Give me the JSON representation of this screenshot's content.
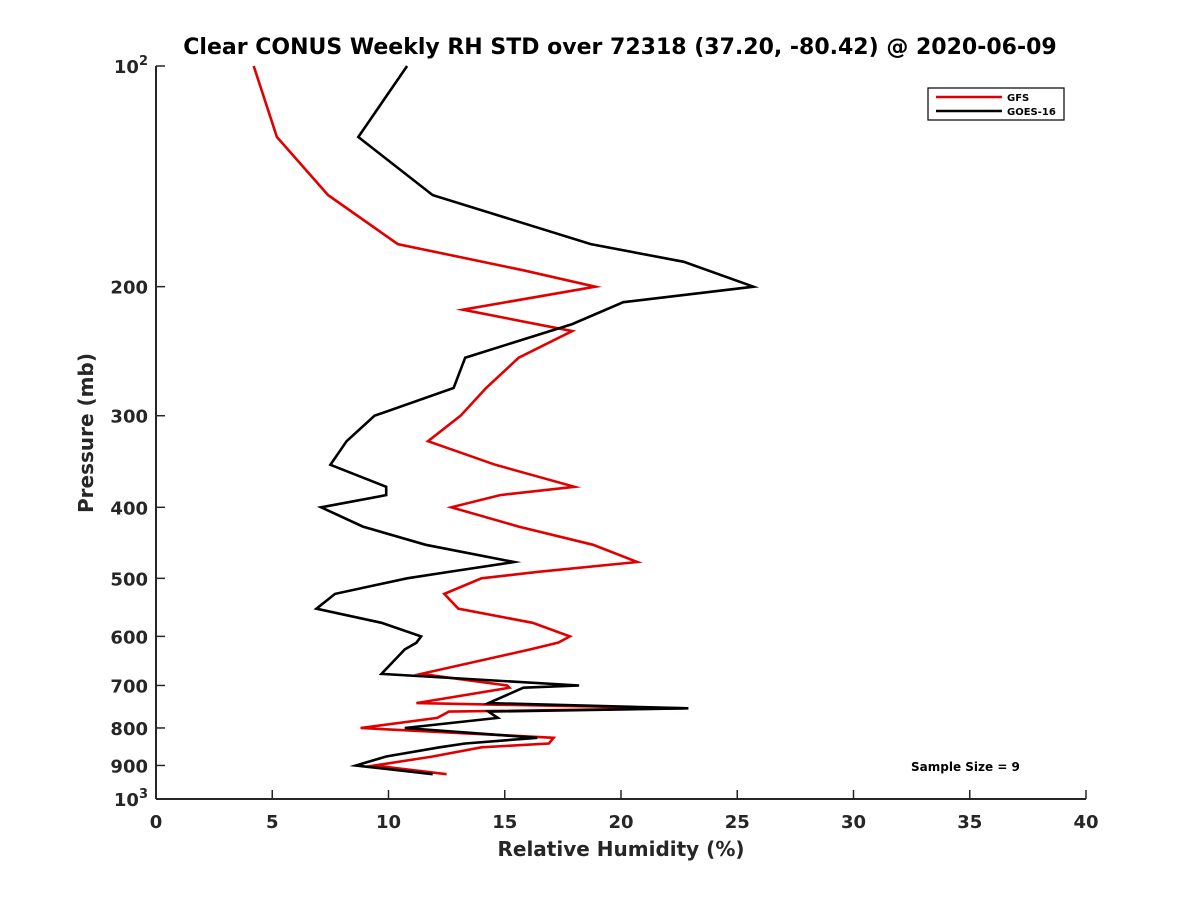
{
  "chart_data": {
    "type": "line",
    "title": "Clear CONUS Weekly RH STD over 72318 (37.20, -80.42) @ 2020-06-09",
    "xlabel": "Relative Humidity (%)",
    "ylabel": "Pressure (mb)",
    "xlim": [
      0,
      40
    ],
    "ylim": [
      100,
      1000
    ],
    "y_scale": "log",
    "y_reversed": true,
    "x_ticks": [
      "0",
      "5",
      "10",
      "15",
      "20",
      "25",
      "30",
      "35",
      "40"
    ],
    "y_ticks": [
      {
        "value": 100,
        "base": "10",
        "exp": "2"
      },
      {
        "value": 200,
        "label": "200"
      },
      {
        "value": 300,
        "label": "300"
      },
      {
        "value": 400,
        "label": "400"
      },
      {
        "value": 500,
        "label": "500"
      },
      {
        "value": 600,
        "label": "600"
      },
      {
        "value": 700,
        "label": "700"
      },
      {
        "value": 800,
        "label": "800"
      },
      {
        "value": 900,
        "label": "900"
      },
      {
        "value": 1000,
        "base": "10",
        "exp": "3"
      }
    ],
    "grid": false,
    "legend_position": "top-right",
    "annotation": "Sample Size = 9",
    "series": [
      {
        "name": "GFS",
        "color": "#e00000",
        "points": [
          [
            4.2,
            100
          ],
          [
            5.2,
            125
          ],
          [
            7.4,
            150
          ],
          [
            10.4,
            175
          ],
          [
            15.8,
            190
          ],
          [
            18.9,
            200
          ],
          [
            13.2,
            215
          ],
          [
            17.9,
            230
          ],
          [
            15.6,
            250
          ],
          [
            14.2,
            275
          ],
          [
            13.1,
            300
          ],
          [
            11.7,
            325
          ],
          [
            14.6,
            350
          ],
          [
            18.0,
            375
          ],
          [
            14.8,
            385
          ],
          [
            12.7,
            400
          ],
          [
            15.6,
            425
          ],
          [
            18.8,
            450
          ],
          [
            20.7,
            475
          ],
          [
            16.4,
            490
          ],
          [
            14.0,
            500
          ],
          [
            12.4,
            525
          ],
          [
            13.0,
            550
          ],
          [
            16.2,
            575
          ],
          [
            17.8,
            600
          ],
          [
            17.3,
            612
          ],
          [
            16.1,
            625
          ],
          [
            11.4,
            675
          ],
          [
            15.1,
            700
          ],
          [
            15.2,
            705
          ],
          [
            11.2,
            740
          ],
          [
            22.7,
            752
          ],
          [
            12.6,
            760
          ],
          [
            12.1,
            775
          ],
          [
            8.8,
            800
          ],
          [
            17.1,
            825
          ],
          [
            16.9,
            840
          ],
          [
            14.0,
            850
          ],
          [
            11.9,
            875
          ],
          [
            9.4,
            900
          ],
          [
            12.5,
            925
          ]
        ]
      },
      {
        "name": "GOES-16",
        "color": "#000000",
        "points": [
          [
            10.8,
            100
          ],
          [
            8.7,
            125
          ],
          [
            11.9,
            150
          ],
          [
            18.7,
            175
          ],
          [
            22.7,
            185
          ],
          [
            25.7,
            200
          ],
          [
            20.1,
            210
          ],
          [
            17.9,
            225
          ],
          [
            13.3,
            250
          ],
          [
            12.8,
            275
          ],
          [
            9.4,
            300
          ],
          [
            8.2,
            325
          ],
          [
            7.5,
            350
          ],
          [
            9.9,
            375
          ],
          [
            9.9,
            385
          ],
          [
            7.1,
            400
          ],
          [
            8.9,
            425
          ],
          [
            11.6,
            450
          ],
          [
            15.4,
            475
          ],
          [
            12.6,
            490
          ],
          [
            10.8,
            500
          ],
          [
            7.7,
            525
          ],
          [
            6.9,
            550
          ],
          [
            9.7,
            575
          ],
          [
            11.4,
            600
          ],
          [
            11.2,
            612
          ],
          [
            10.7,
            625
          ],
          [
            9.7,
            675
          ],
          [
            18.2,
            700
          ],
          [
            15.8,
            705
          ],
          [
            14.3,
            740
          ],
          [
            22.9,
            752
          ],
          [
            14.3,
            760
          ],
          [
            14.7,
            775
          ],
          [
            10.7,
            800
          ],
          [
            16.4,
            825
          ],
          [
            13.3,
            840
          ],
          [
            12.2,
            850
          ],
          [
            9.9,
            875
          ],
          [
            8.6,
            900
          ],
          [
            11.9,
            925
          ]
        ]
      }
    ]
  }
}
